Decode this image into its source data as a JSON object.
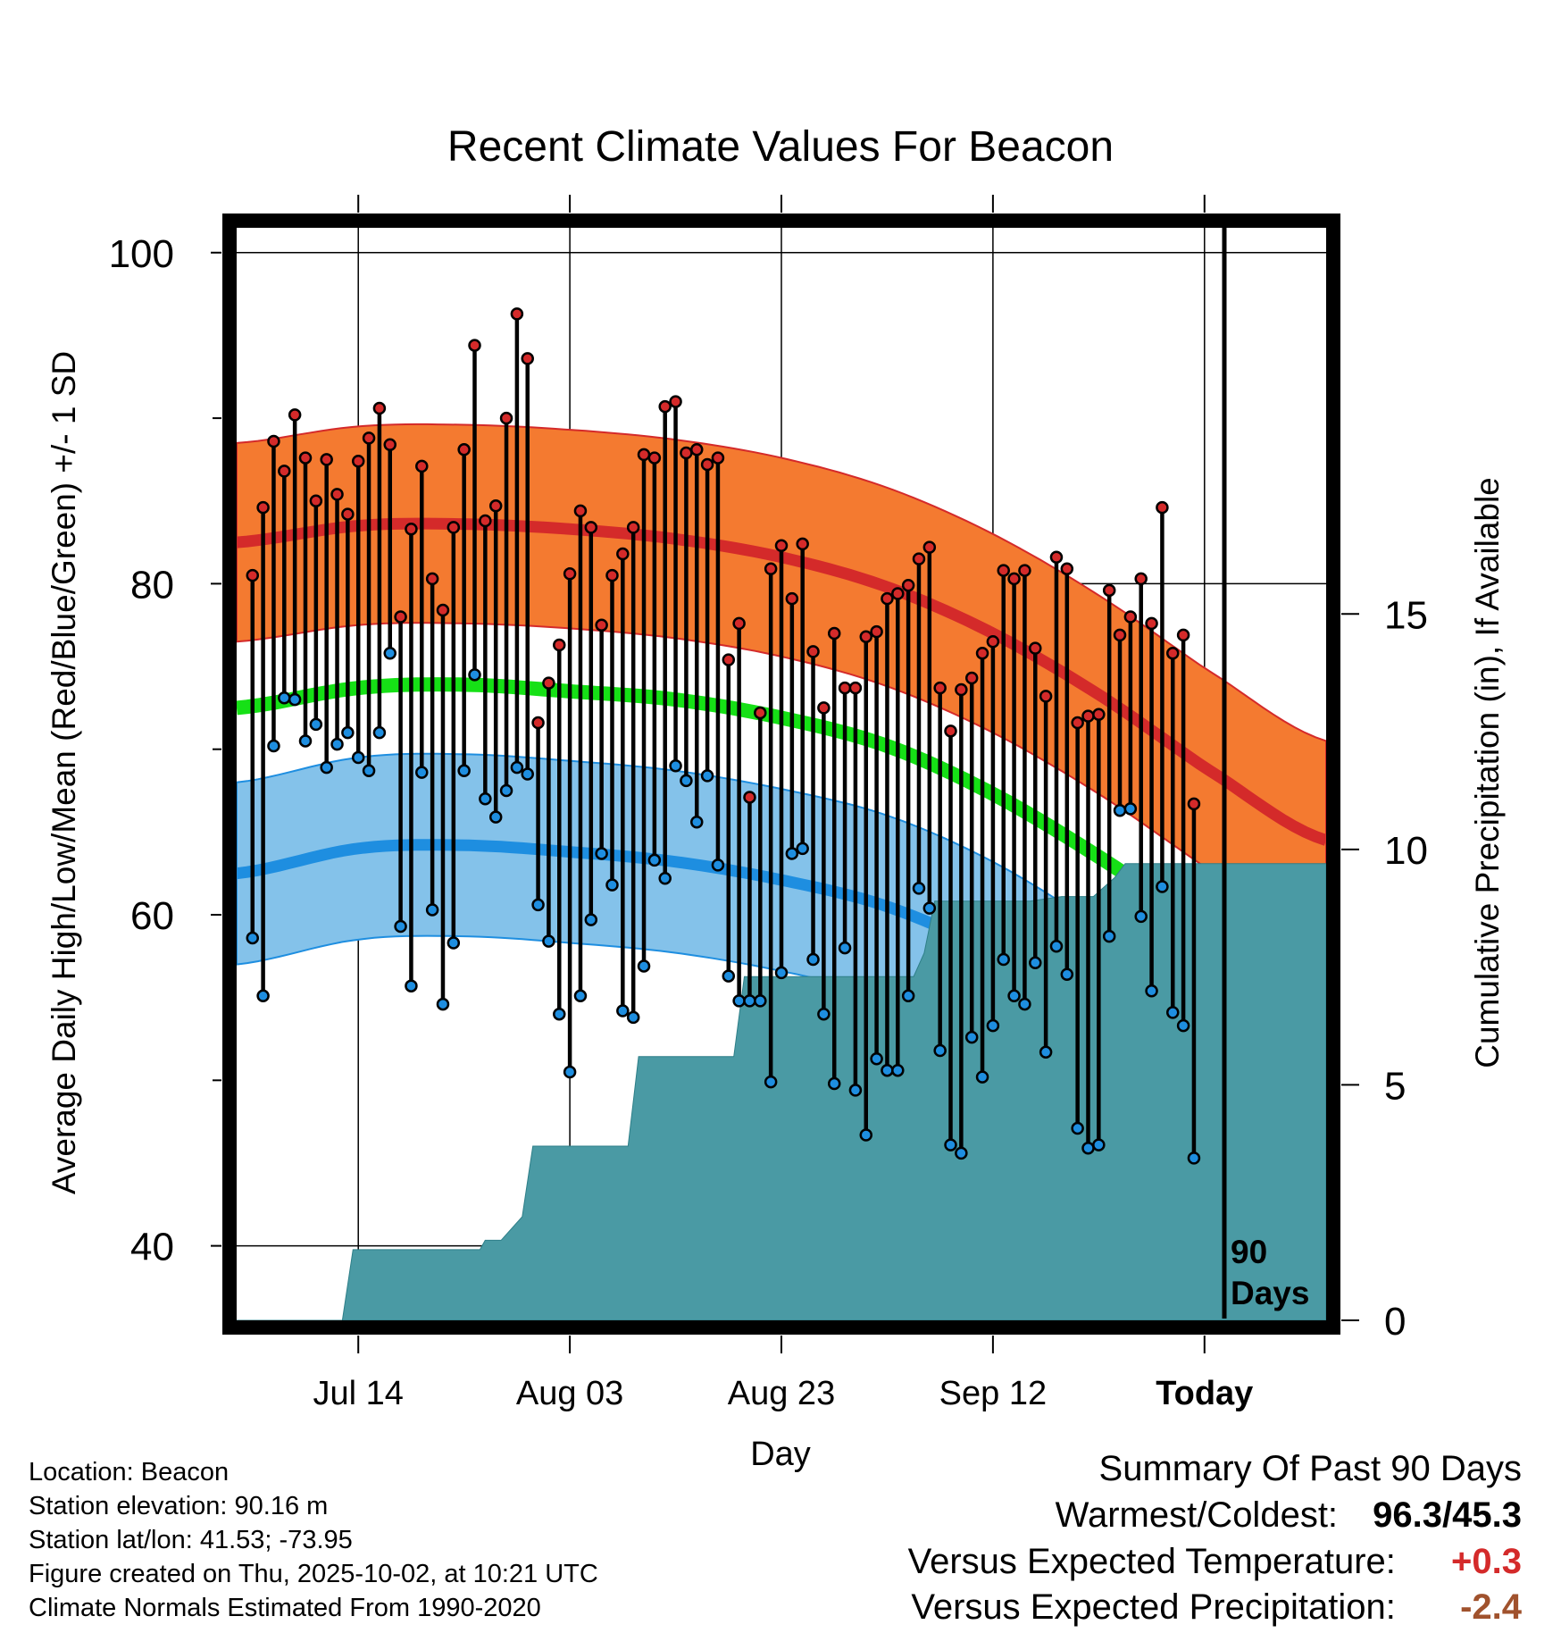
{
  "chart_data": {
    "type": "line",
    "title": "Recent Climate Values For Beacon",
    "xlabel": "Day",
    "ylabel": "Average Daily High/Low/Mean (Red/Blue/Green) +/- 1 SD",
    "y2label": "Cumulative Precipitation (in), If Available",
    "ylim": [
      35.5,
      101.5
    ],
    "y2lim": [
      0,
      23.2
    ],
    "xlim": [
      -1.5,
      101.5
    ],
    "yticks": [
      40,
      60,
      80,
      100
    ],
    "y2ticks": [
      0,
      5,
      10,
      15
    ],
    "xtick_positions": [
      10,
      30,
      50,
      70,
      90
    ],
    "xtick_labels": [
      "Jul 14",
      "Aug 03",
      "Aug 23",
      "Sep 12",
      "Today"
    ],
    "today_marker": {
      "x": 90,
      "label_line1": "90",
      "label_line2": "Days"
    },
    "normals": {
      "x": [
        -1.5,
        10,
        20,
        30,
        40,
        50,
        60,
        70,
        80,
        90,
        101.5
      ],
      "high_mean": [
        82.5,
        83.5,
        83.6,
        83.3,
        82.7,
        81.6,
        79.8,
        77.0,
        73.3,
        68.9,
        64.5
      ],
      "high_sd": 6.0,
      "low_mean": [
        62.5,
        64.0,
        64.2,
        63.8,
        63.2,
        62.1,
        60.5,
        57.7,
        53.8,
        49.5,
        45.0
      ],
      "low_sd": 5.5,
      "mean": [
        72.5,
        73.7,
        73.9,
        73.5,
        73.0,
        71.9,
        70.2,
        67.3,
        63.5,
        59.2,
        54.8
      ]
    },
    "precip": {
      "x": [
        -1.5,
        8.5,
        9.5,
        21.5,
        22,
        23.5,
        25.5,
        26.5,
        35.5,
        36.5,
        40.5,
        45.5,
        46.5,
        48.5,
        62.5,
        63.5,
        64.5,
        65.5,
        73.5,
        76.5,
        79.5,
        80.5,
        81.5,
        82.5,
        86.5,
        101.5
      ],
      "y": [
        0,
        0,
        1.5,
        1.5,
        1.7,
        1.7,
        2.2,
        3.7,
        3.7,
        5.6,
        5.6,
        5.6,
        7.3,
        7.3,
        7.3,
        7.8,
        8.9,
        8.9,
        8.9,
        9.0,
        9.0,
        9.2,
        9.4,
        9.7,
        9.7,
        9.7
      ]
    },
    "series": [
      {
        "name": "High",
        "color": "#d42a2a",
        "values": [
          80.5,
          84.6,
          88.6,
          86.8,
          90.2,
          87.6,
          85.0,
          87.5,
          85.4,
          84.2,
          87.4,
          88.8,
          90.6,
          88.4,
          78.0,
          83.3,
          87.1,
          80.3,
          78.4,
          83.4,
          88.1,
          94.4,
          83.8,
          84.7,
          90.0,
          96.3,
          93.6,
          71.6,
          74.0,
          76.3,
          80.6,
          84.4,
          83.4,
          77.5,
          80.5,
          81.8,
          83.4,
          87.8,
          87.6,
          90.7,
          91.0,
          87.9,
          88.1,
          87.2,
          87.6,
          75.4,
          77.6,
          67.1,
          72.2,
          80.9,
          82.3,
          79.1,
          82.4,
          75.9,
          72.5,
          77.0,
          73.7,
          73.7,
          76.8,
          77.1,
          79.1,
          79.4,
          79.9,
          81.5,
          82.2,
          73.7,
          71.1,
          73.6,
          74.3,
          75.8,
          76.5,
          80.8,
          80.3,
          80.8,
          76.1,
          73.2,
          81.6,
          80.9,
          71.6,
          72.0,
          72.1,
          79.6,
          76.9,
          78.0,
          80.3,
          77.6,
          84.6,
          75.8,
          76.9,
          66.7
        ]
      },
      {
        "name": "Low",
        "color": "#1e8ee0",
        "values": [
          58.6,
          55.1,
          70.2,
          73.1,
          73.0,
          70.5,
          71.5,
          68.9,
          70.3,
          71.0,
          69.5,
          68.7,
          71.0,
          75.8,
          59.3,
          55.7,
          68.6,
          60.3,
          54.6,
          58.3,
          68.7,
          74.5,
          67.0,
          65.9,
          67.5,
          68.9,
          68.5,
          60.6,
          58.4,
          54.0,
          50.5,
          55.1,
          59.7,
          63.7,
          61.8,
          54.2,
          53.8,
          56.9,
          63.3,
          62.2,
          69.0,
          68.1,
          65.6,
          68.4,
          63.0,
          56.3,
          54.8,
          54.8,
          54.8,
          49.9,
          56.5,
          63.7,
          64.0,
          57.3,
          54.0,
          49.8,
          58.0,
          49.4,
          46.7,
          51.3,
          50.6,
          50.6,
          55.1,
          61.6,
          60.4,
          51.8,
          46.1,
          45.6,
          52.6,
          50.2,
          53.3,
          57.3,
          55.1,
          54.6,
          57.1,
          51.7,
          58.1,
          56.4,
          47.1,
          45.9,
          46.1,
          58.7,
          66.3,
          66.4,
          59.9,
          55.4,
          61.7,
          54.1,
          53.3,
          45.3
        ]
      }
    ]
  },
  "info": {
    "location": "Location: Beacon",
    "elevation": "Station elevation: 90.16 m",
    "latlon": "Station lat/lon: 41.53; -73.95",
    "created": "Figure created on Thu, 2025-10-02, at 10:21 UTC",
    "normals": "Climate Normals Estimated From 1990-2020"
  },
  "summary": {
    "heading": "Summary Of Past 90 Days",
    "warmest_label": "Warmest/Coldest:",
    "warmest_value": "96.3/45.3",
    "temp_label": "Versus Expected Temperature:",
    "temp_value": "+0.3",
    "temp_color": "#d42a2a",
    "precip_label": "Versus Expected Precipitation:",
    "precip_value": "-2.4",
    "precip_color": "#a0522d"
  },
  "colors": {
    "high_band": "#f47a30",
    "high_line": "#d42a2a",
    "low_band": "#84c2ea",
    "low_line": "#1e8ee0",
    "mean_line": "#16e016",
    "precip_fill": "#4a9aa4",
    "precip_edge": "#2e7f88"
  }
}
